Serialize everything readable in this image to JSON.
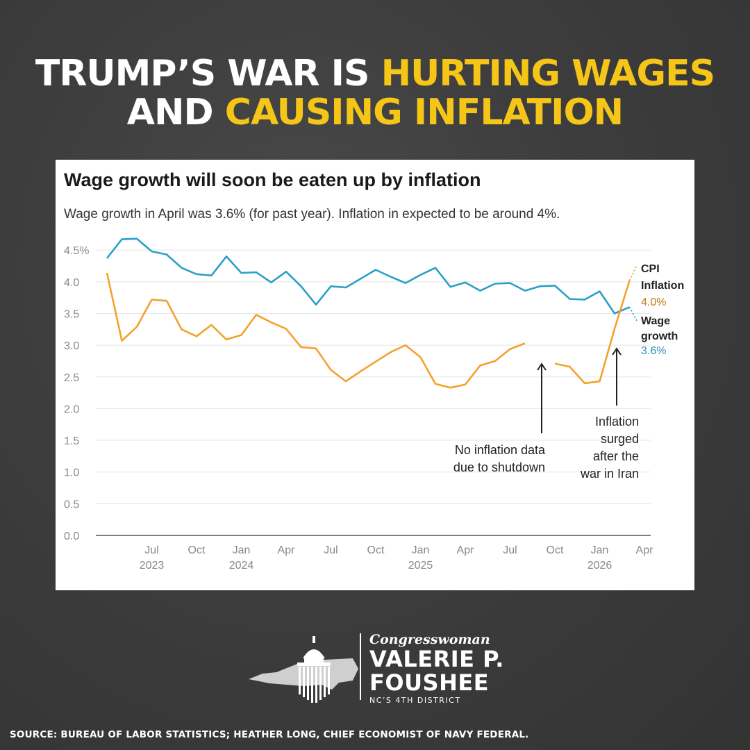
{
  "headline": {
    "line1_white": "TRUMP’S WAR IS ",
    "line1_yellow": "HURTING WAGES",
    "line2_white": "AND ",
    "line2_yellow": "CAUSING INFLATION"
  },
  "colors": {
    "accent": "#f5c518",
    "wage": "#2a9fc9",
    "cpi": "#f2a22c"
  },
  "chart_data": {
    "type": "line",
    "title": "Wage growth will soon be eaten up by inflation",
    "subtitle": "Wage growth in April was 3.6% (for past year). Inflation in expected to be around 4%.",
    "ylim": [
      0,
      4.5
    ],
    "y_ticks": [
      "4.5%",
      "4.0",
      "3.5",
      "3.0",
      "2.5",
      "2.0",
      "1.5",
      "1.0",
      "0.5",
      "0.0"
    ],
    "y_tick_values": [
      4.5,
      4.0,
      3.5,
      3.0,
      2.5,
      2.0,
      1.5,
      1.0,
      0.5,
      0.0
    ],
    "x_ticks": [
      {
        "month": 3,
        "label": "Jul",
        "year": "2023"
      },
      {
        "month": 6,
        "label": "Oct",
        "year": ""
      },
      {
        "month": 9,
        "label": "Jan",
        "year": "2024"
      },
      {
        "month": 12,
        "label": "Apr",
        "year": ""
      },
      {
        "month": 15,
        "label": "Jul",
        "year": ""
      },
      {
        "month": 18,
        "label": "Oct",
        "year": ""
      },
      {
        "month": 21,
        "label": "Jan",
        "year": "2025"
      },
      {
        "month": 24,
        "label": "Apr",
        "year": ""
      },
      {
        "month": 27,
        "label": "Jul",
        "year": ""
      },
      {
        "month": 30,
        "label": "Oct",
        "year": ""
      },
      {
        "month": 33,
        "label": "Jan",
        "year": "2026"
      },
      {
        "month": 36,
        "label": "Apr",
        "year": ""
      }
    ],
    "grid": true,
    "series": [
      {
        "name": "Wage growth",
        "color": "#2a9fc9",
        "values": [
          4.37,
          4.67,
          4.68,
          4.48,
          4.43,
          4.22,
          4.12,
          4.1,
          4.4,
          4.14,
          4.15,
          3.99,
          4.16,
          3.93,
          3.64,
          3.93,
          3.91,
          4.05,
          4.19,
          4.08,
          3.98,
          4.11,
          4.22,
          3.92,
          3.99,
          3.86,
          3.97,
          3.98,
          3.86,
          3.93,
          3.94,
          3.73,
          3.72,
          3.85,
          3.5,
          3.6
        ],
        "final_label": "Wage growth",
        "final_value": "3.6%"
      },
      {
        "name": "CPI Inflation",
        "color": "#f2a22c",
        "values": [
          4.14,
          3.07,
          3.29,
          3.72,
          3.7,
          3.25,
          3.14,
          3.32,
          3.09,
          3.16,
          3.48,
          3.36,
          3.26,
          2.97,
          2.95,
          2.61,
          2.43,
          2.59,
          2.74,
          2.89,
          3.0,
          2.81,
          2.39,
          2.33,
          2.38,
          2.68,
          2.75,
          2.94,
          3.03,
          null,
          2.71,
          2.66,
          2.4,
          2.43,
          3.26,
          4.02
        ],
        "projected_value": 4.25,
        "final_label": "CPI Inflation",
        "final_value": "4.0%"
      }
    ],
    "annotations": [
      {
        "text_lines": [
          "No inflation data",
          "due to shutdown"
        ]
      },
      {
        "text_lines": [
          "Inflation",
          "surged",
          "after the",
          "war in Iran"
        ]
      }
    ]
  },
  "logo": {
    "small": "Congresswoman",
    "name_line1": "VALERIE P.",
    "name_line2": "FOUSHEE",
    "district": "NC’S 4TH DISTRICT"
  },
  "source": "SOURCE: BUREAU OF LABOR STATISTICS; HEATHER LONG, CHIEF ECONOMIST OF NAVY FEDERAL."
}
